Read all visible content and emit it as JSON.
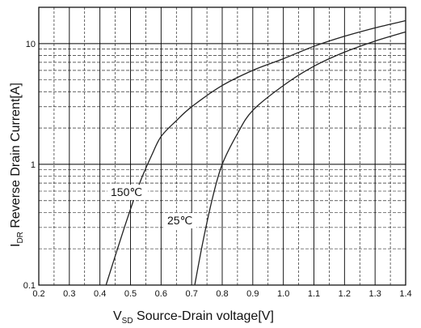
{
  "chart_data": {
    "type": "line",
    "title": "",
    "x_scale": "linear",
    "y_scale": "log",
    "xlim": [
      0.2,
      1.4
    ],
    "ylim": [
      0.1,
      20
    ],
    "x_ticks": [
      "0.2",
      "0.3",
      "0.4",
      "0.5",
      "0.6",
      "0.7",
      "0.8",
      "0.9",
      "1.0",
      "1.1",
      "1.2",
      "1.3",
      "1.4"
    ],
    "y_ticks": [
      "0.1",
      "1",
      "10"
    ],
    "xlabel": {
      "main": "V",
      "sub": "SD",
      "rest": " Source-Drain voltage[V]"
    },
    "ylabel": {
      "main": "I",
      "sub": "DR",
      "rest": " Reverse Drain Current[A]"
    },
    "grid": true,
    "series": [
      {
        "name": "150℃",
        "x": [
          0.42,
          0.48,
          0.53,
          0.57,
          0.6,
          0.65,
          0.7,
          0.8,
          0.9,
          1.0,
          1.1,
          1.2,
          1.3,
          1.4
        ],
        "y": [
          0.1,
          0.3,
          0.7,
          1.2,
          1.7,
          2.3,
          3.0,
          4.5,
          6.0,
          7.5,
          9.5,
          11.5,
          13.5,
          15.5
        ]
      },
      {
        "name": "25℃",
        "x": [
          0.71,
          0.74,
          0.77,
          0.8,
          0.85,
          0.9,
          1.0,
          1.1,
          1.2,
          1.3,
          1.4
        ],
        "y": [
          0.1,
          0.25,
          0.55,
          1.0,
          1.8,
          2.8,
          4.5,
          6.5,
          8.5,
          10.5,
          12.5
        ]
      }
    ]
  }
}
